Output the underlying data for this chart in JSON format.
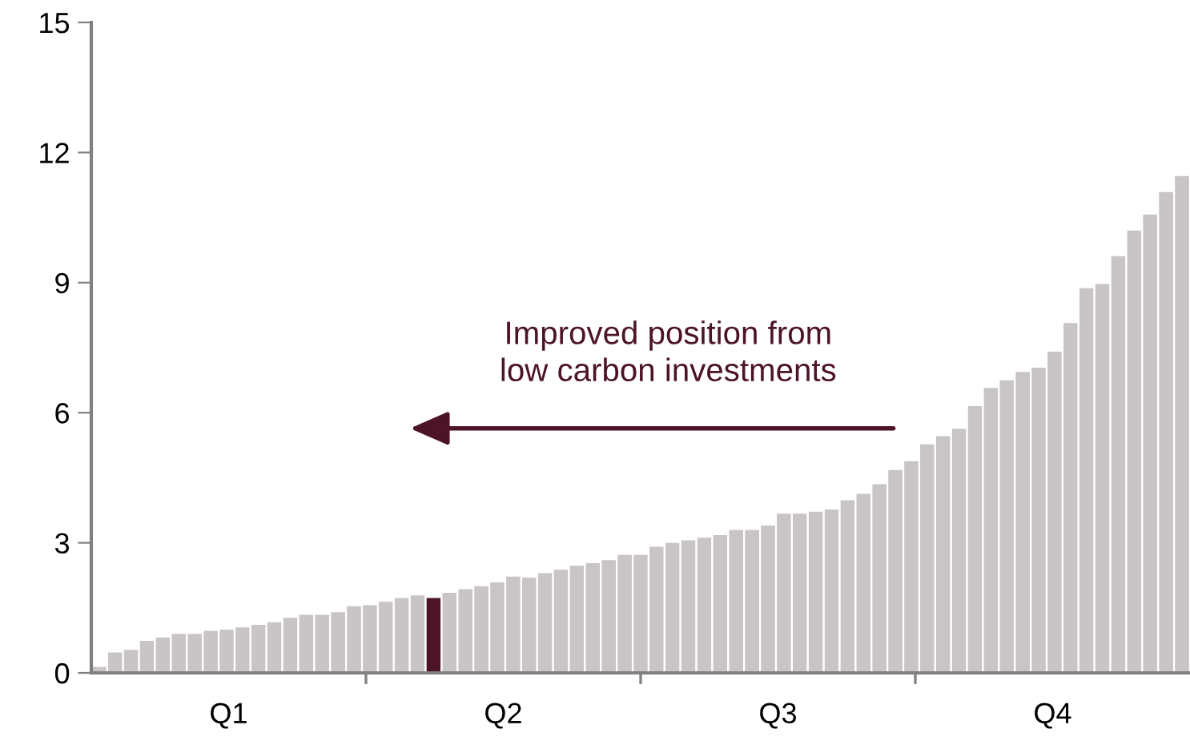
{
  "chart_data": {
    "type": "bar",
    "categories": [
      null,
      null,
      null,
      null,
      null,
      null,
      null,
      null,
      null,
      null,
      null,
      null,
      null,
      null,
      null,
      null,
      null,
      null,
      null,
      null,
      null,
      null,
      null,
      null,
      null,
      null,
      null,
      null,
      null,
      null,
      null,
      null,
      null,
      null,
      null,
      null,
      null,
      null,
      null,
      null,
      null,
      null,
      null,
      null,
      null,
      null,
      null,
      null,
      null,
      null,
      null,
      null,
      null,
      null,
      null,
      null,
      null,
      null,
      null,
      null,
      null,
      null,
      null,
      null,
      null,
      null,
      null,
      null,
      null
    ],
    "values": [
      0.16,
      0.49,
      0.55,
      0.76,
      0.84,
      0.92,
      0.92,
      0.99,
      1.02,
      1.07,
      1.13,
      1.19,
      1.29,
      1.36,
      1.36,
      1.42,
      1.56,
      1.58,
      1.66,
      1.75,
      1.81,
      1.75,
      1.87,
      1.95,
      2.02,
      2.11,
      2.24,
      2.22,
      2.32,
      2.4,
      2.49,
      2.55,
      2.62,
      2.74,
      2.74,
      2.93,
      3.02,
      3.08,
      3.14,
      3.2,
      3.32,
      3.32,
      3.42,
      3.69,
      3.69,
      3.74,
      3.79,
      4.0,
      4.15,
      4.37,
      4.7,
      4.9,
      5.29,
      5.48,
      5.65,
      6.17,
      6.59,
      6.77,
      6.96,
      7.06,
      7.43,
      8.09,
      8.89,
      8.99,
      9.63,
      10.22,
      10.59,
      11.11,
      11.48
    ],
    "colors": [
      "#c9c4c6",
      "#c9c4c6",
      "#c9c4c6",
      "#c9c4c6",
      "#c9c4c6",
      "#c9c4c6",
      "#c9c4c6",
      "#c9c4c6",
      "#c9c4c6",
      "#c9c4c6",
      "#c9c4c6",
      "#c9c4c6",
      "#c9c4c6",
      "#c9c4c6",
      "#c9c4c6",
      "#c9c4c6",
      "#c9c4c6",
      "#c9c4c6",
      "#c9c4c6",
      "#c9c4c6",
      "#c9c4c6",
      "#4d1428",
      "#c9c4c6",
      "#c9c4c6",
      "#c9c4c6",
      "#c9c4c6",
      "#c9c4c6",
      "#c9c4c6",
      "#c9c4c6",
      "#c9c4c6",
      "#c9c4c6",
      "#c9c4c6",
      "#c9c4c6",
      "#c9c4c6",
      "#c9c4c6",
      "#c9c4c6",
      "#c9c4c6",
      "#c9c4c6",
      "#c9c4c6",
      "#c9c4c6",
      "#c9c4c6",
      "#c9c4c6",
      "#c9c4c6",
      "#c9c4c6",
      "#c9c4c6",
      "#c9c4c6",
      "#c9c4c6",
      "#c9c4c6",
      "#c9c4c6",
      "#c9c4c6",
      "#c9c4c6",
      "#c9c4c6",
      "#c9c4c6",
      "#c9c4c6",
      "#c9c4c6",
      "#c9c4c6",
      "#c9c4c6",
      "#c9c4c6",
      "#c9c4c6",
      "#c9c4c6",
      "#c9c4c6",
      "#c9c4c6",
      "#c9c4c6",
      "#c9c4c6",
      "#c9c4c6",
      "#c9c4c6",
      "#c9c4c6",
      "#c9c4c6",
      "#c9c4c6"
    ],
    "ylim": [
      0,
      15
    ],
    "yticks": [
      0,
      3,
      6,
      9,
      12,
      15
    ],
    "grid": false,
    "legend": false,
    "annotations": [
      "Improved position from\nlow carbon investments",
      "Q1",
      "Q2",
      "Q3",
      "Q4"
    ]
  }
}
